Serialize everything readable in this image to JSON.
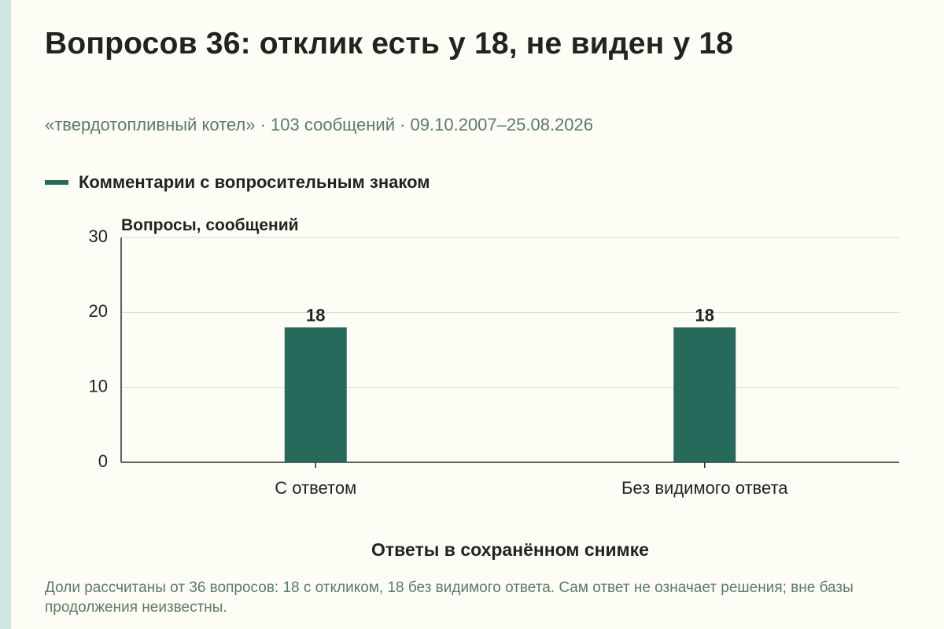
{
  "title": "Вопросов 36: отклик есть у 18, не виден у 18",
  "subtitle": "«твердотопливный котел» · 103 сообщений · 09.10.2007–25.08.2026",
  "note": "Доли рассчитаны от 36 вопросов: 18 с откликом, 18 без видимого ответа. Сам ответ не означает решения; вне базы продолжения неизвестны.",
  "colors": {
    "bar": "#27695a",
    "background": "#fdfcf5",
    "text": "#1f2420",
    "muted": "#5b7a6e",
    "grid": "#d8d8d0",
    "axis": "#2b2b2b"
  },
  "chart_data": {
    "type": "bar",
    "categories": [
      "С ответом",
      "Без видимого ответа"
    ],
    "series": [
      {
        "name": "Комментарии с вопросительным знаком",
        "values": [
          18,
          18
        ]
      }
    ],
    "data_labels": [
      "18",
      "18"
    ],
    "xlabel": "Ответы в сохранённом снимке",
    "ylabel": "Вопросы, сообщений",
    "ylim": [
      0,
      30
    ],
    "yticks": [
      0,
      10,
      20,
      30
    ],
    "grid": true,
    "legend": "top-left"
  }
}
